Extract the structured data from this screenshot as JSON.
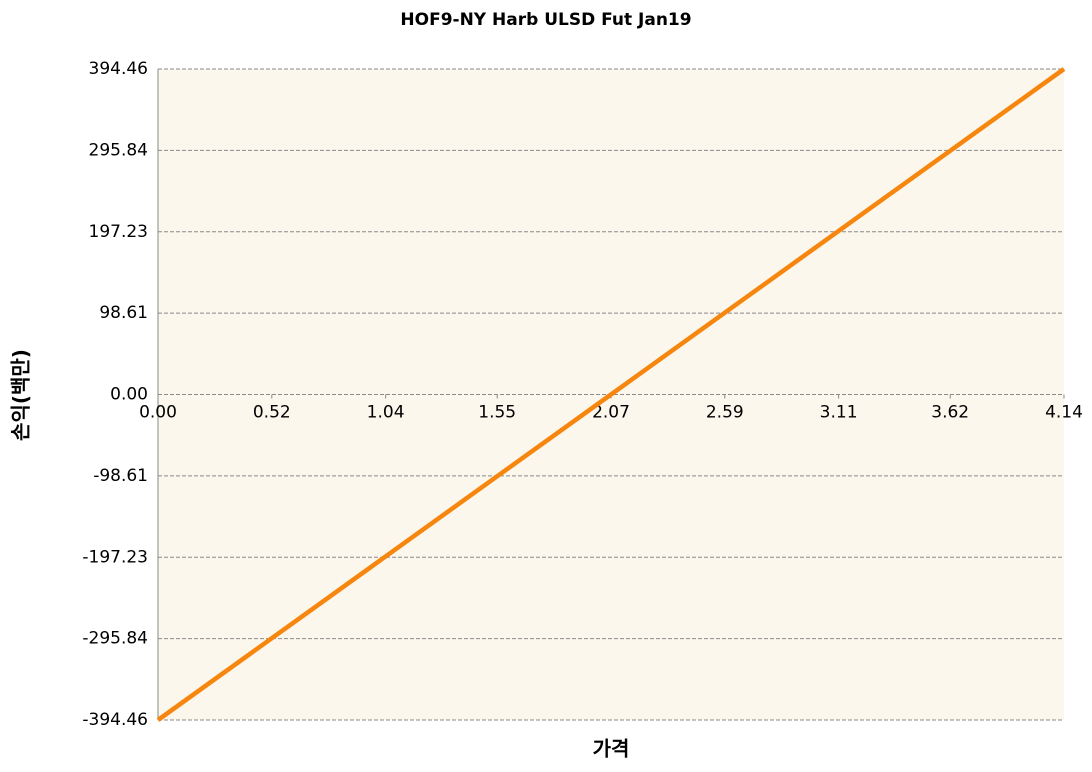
{
  "chart_data": {
    "type": "line",
    "title": "HOF9-NY Harb ULSD Fut Jan19",
    "x_label": "가격",
    "y_label": "손익(백만)",
    "x": [
      0,
      2.07,
      4.14
    ],
    "series": [
      {
        "color": "#f7860f",
        "values": [
          -394.46,
          0,
          394.46
        ]
      }
    ],
    "xlim": [
      0,
      4.14
    ],
    "xticks": [
      {
        "value": 0,
        "label": "0.00"
      },
      0.52,
      1.04,
      1.55,
      2.07,
      2.59,
      3.11,
      3.62,
      4.14
    ],
    "ylim": [
      -394.46,
      394.46
    ],
    "yticks": [
      -394.46,
      -295.84,
      -197.23,
      -98.61,
      {
        "value": 0,
        "label": "0.00"
      },
      98.61,
      197.23,
      295.84,
      394.46
    ],
    "grid": true
  }
}
